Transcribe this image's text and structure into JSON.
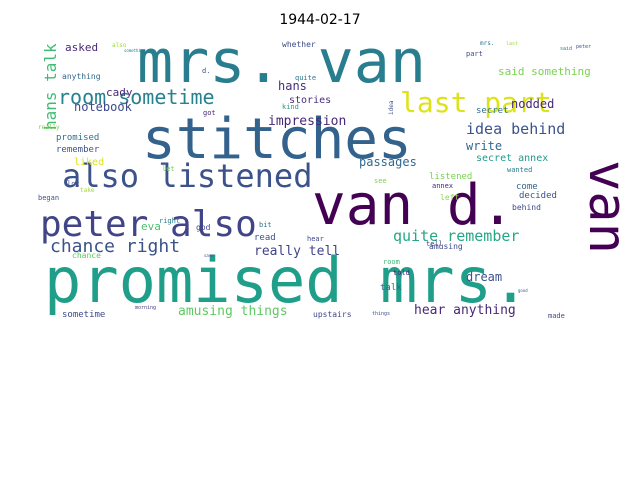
{
  "chart_data": {
    "type": "wordcloud",
    "title": "1944-02-17",
    "colormap": "viridis",
    "words": [
      {
        "text": "stitches",
        "weight": 56,
        "color": "#33628d"
      },
      {
        "text": "promised mrs.",
        "weight": 62,
        "color": "#1f9e89"
      },
      {
        "text": "mrs. van",
        "weight": 60,
        "color": "#287d8e"
      },
      {
        "text": "van d.",
        "weight": 56,
        "color": "#440154"
      },
      {
        "text": "van",
        "weight": 52,
        "color": "#440154"
      },
      {
        "text": "peter also",
        "weight": 36,
        "color": "#414487"
      },
      {
        "text": "also listened",
        "weight": 32,
        "color": "#3b528b"
      },
      {
        "text": "last part",
        "weight": 28,
        "color": "#dde318"
      },
      {
        "text": "room sometime",
        "weight": 20,
        "color": "#26828e"
      },
      {
        "text": "chance right",
        "weight": 18,
        "color": "#3b528b"
      },
      {
        "text": "quite remember",
        "weight": 15,
        "color": "#26a784"
      },
      {
        "text": "idea behind",
        "weight": 15,
        "color": "#3b528b"
      },
      {
        "text": "hans talk",
        "weight": 16,
        "color": "#3fbc73"
      },
      {
        "text": "impression",
        "weight": 13,
        "color": "#482878"
      },
      {
        "text": "amusing things",
        "weight": 13,
        "color": "#5ec962"
      },
      {
        "text": "really tell",
        "weight": 13,
        "color": "#414487"
      },
      {
        "text": "hear anything",
        "weight": 13,
        "color": "#482878"
      },
      {
        "text": "passages",
        "weight": 12,
        "color": "#31688e"
      },
      {
        "text": "write",
        "weight": 12,
        "color": "#31688e"
      },
      {
        "text": "dream",
        "weight": 12,
        "color": "#3b528b"
      },
      {
        "text": "nodded",
        "weight": 12,
        "color": "#482878"
      },
      {
        "text": "said something",
        "weight": 11,
        "color": "#7ad151"
      },
      {
        "text": "notebook",
        "weight": 12,
        "color": "#3e4989"
      },
      {
        "text": "hans",
        "weight": 12,
        "color": "#472d7b"
      },
      {
        "text": "cady",
        "weight": 11,
        "color": "#482878"
      },
      {
        "text": "eva",
        "weight": 11,
        "color": "#4ac16d"
      },
      {
        "text": "asked",
        "weight": 11,
        "color": "#482878"
      },
      {
        "text": "stories",
        "weight": 10,
        "color": "#472d7b"
      },
      {
        "text": "secret annex",
        "weight": 10,
        "color": "#1f9a8a"
      },
      {
        "text": "secret",
        "weight": 9,
        "color": "#2c728e"
      },
      {
        "text": "promised",
        "weight": 9,
        "color": "#2c728e"
      },
      {
        "text": "remember",
        "weight": 9,
        "color": "#3b528b"
      },
      {
        "text": "liked",
        "weight": 10,
        "color": "#dde318"
      },
      {
        "text": "listened",
        "weight": 9,
        "color": "#7ad151"
      },
      {
        "text": "decided",
        "weight": 9,
        "color": "#3b528b"
      },
      {
        "text": "amusing",
        "weight": 8,
        "color": "#3e4989"
      },
      {
        "text": "talk",
        "weight": 9,
        "color": "#31688e"
      },
      {
        "text": "sometime",
        "weight": 9,
        "color": "#3e4989"
      },
      {
        "text": "read",
        "weight": 9,
        "color": "#3b528b"
      },
      {
        "text": "come",
        "weight": 9,
        "color": "#33638d"
      },
      {
        "text": "behind",
        "weight": 8,
        "color": "#3e4989"
      },
      {
        "text": "chance",
        "weight": 8,
        "color": "#5ec962"
      },
      {
        "text": "upstairs",
        "weight": 8,
        "color": "#3e4989"
      },
      {
        "text": "anything",
        "weight": 8,
        "color": "#31688e"
      },
      {
        "text": "whether",
        "weight": 8,
        "color": "#3e4989"
      },
      {
        "text": "part",
        "weight": 7,
        "color": "#3e4989"
      },
      {
        "text": "god",
        "weight": 8,
        "color": "#3e4989"
      },
      {
        "text": "wanted",
        "weight": 7,
        "color": "#287d8e"
      },
      {
        "text": "annex",
        "weight": 7,
        "color": "#482878"
      },
      {
        "text": "left",
        "weight": 8,
        "color": "#8fd744"
      },
      {
        "text": "got",
        "weight": 7,
        "color": "#482878"
      },
      {
        "text": "lot",
        "weight": 7,
        "color": "#3b528b"
      },
      {
        "text": "began",
        "weight": 7,
        "color": "#3b528b"
      },
      {
        "text": "room",
        "weight": 7,
        "color": "#3fbc73"
      },
      {
        "text": "told",
        "weight": 7,
        "color": "#482878"
      },
      {
        "text": "tell",
        "weight": 7,
        "color": "#3e4989"
      },
      {
        "text": "hear",
        "weight": 7,
        "color": "#3e4989"
      },
      {
        "text": "see",
        "weight": 7,
        "color": "#7ad151"
      },
      {
        "text": "made",
        "weight": 7,
        "color": "#3e4989"
      },
      {
        "text": "right",
        "weight": 7,
        "color": "#26828e"
      },
      {
        "text": "kind",
        "weight": 7,
        "color": "#1f9e89"
      },
      {
        "text": "quite",
        "weight": 7,
        "color": "#2a788e"
      },
      {
        "text": "bit",
        "weight": 7,
        "color": "#2c728e"
      },
      {
        "text": "let",
        "weight": 7,
        "color": "#6ece58"
      },
      {
        "text": "d.",
        "weight": 7,
        "color": "#3b528b"
      },
      {
        "text": "idea",
        "weight": 6,
        "color": "#3b528b"
      },
      {
        "text": "really",
        "weight": 6,
        "color": "#7ad151"
      },
      {
        "text": "take",
        "weight": 6,
        "color": "#a0da39"
      },
      {
        "text": "also",
        "weight": 6,
        "color": "#a0da39"
      },
      {
        "text": "mrs.",
        "weight": 6,
        "color": "#2a788e"
      },
      {
        "text": "last",
        "weight": 5,
        "color": "#a0da39"
      },
      {
        "text": "said",
        "weight": 5,
        "color": "#2a788e"
      },
      {
        "text": "peter",
        "weight": 5,
        "color": "#3b528b"
      },
      {
        "text": "morning",
        "weight": 5,
        "color": "#443983"
      },
      {
        "text": "something",
        "weight": 4,
        "color": "#2c728e"
      },
      {
        "text": "things",
        "weight": 5,
        "color": "#3b528b"
      },
      {
        "text": "save",
        "weight": 4,
        "color": "#3e4989"
      },
      {
        "text": "good",
        "weight": 4,
        "color": "#3b528b"
      }
    ]
  }
}
